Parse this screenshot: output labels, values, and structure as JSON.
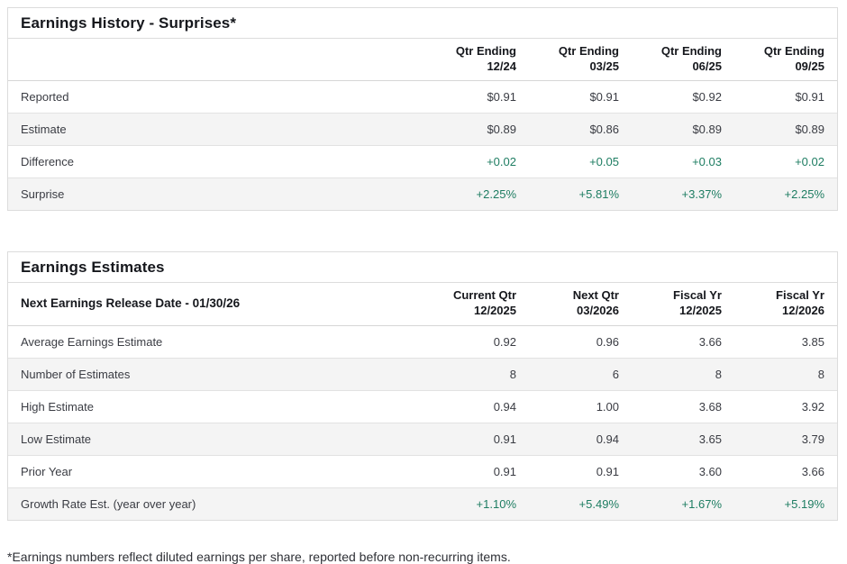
{
  "colors": {
    "positive_green": "#1e7d62",
    "heading_text": "#15171c",
    "body_text": "#3a3c43",
    "row_stripe": "#f4f4f4",
    "border": "#dcdcdc"
  },
  "history": {
    "title": "Earnings History - Surprises*",
    "columns": [
      {
        "line1": "Qtr Ending",
        "line2": "12/24"
      },
      {
        "line1": "Qtr Ending",
        "line2": "03/25"
      },
      {
        "line1": "Qtr Ending",
        "line2": "06/25"
      },
      {
        "line1": "Qtr Ending",
        "line2": "09/25"
      }
    ],
    "rows": [
      {
        "label": "Reported",
        "values": [
          "$0.91",
          "$0.91",
          "$0.92",
          "$0.91"
        ]
      },
      {
        "label": "Estimate",
        "values": [
          "$0.89",
          "$0.86",
          "$0.89",
          "$0.89"
        ]
      },
      {
        "label": "Difference",
        "values": [
          "+0.02",
          "+0.05",
          "+0.03",
          "+0.02"
        ]
      },
      {
        "label": "Surprise",
        "values": [
          "+2.25%",
          "+5.81%",
          "+3.37%",
          "+2.25%"
        ]
      }
    ]
  },
  "estimates": {
    "title": "Earnings Estimates",
    "header_label": "Next Earnings Release Date - 01/30/26",
    "columns": [
      {
        "line1": "Current Qtr",
        "line2": "12/2025"
      },
      {
        "line1": "Next Qtr",
        "line2": "03/2026"
      },
      {
        "line1": "Fiscal Yr",
        "line2": "12/2025"
      },
      {
        "line1": "Fiscal Yr",
        "line2": "12/2026"
      }
    ],
    "rows": [
      {
        "label": "Average Earnings Estimate",
        "values": [
          "0.92",
          "0.96",
          "3.66",
          "3.85"
        ]
      },
      {
        "label": "Number of Estimates",
        "values": [
          "8",
          "6",
          "8",
          "8"
        ]
      },
      {
        "label": "High Estimate",
        "values": [
          "0.94",
          "1.00",
          "3.68",
          "3.92"
        ]
      },
      {
        "label": "Low Estimate",
        "values": [
          "0.91",
          "0.94",
          "3.65",
          "3.79"
        ]
      },
      {
        "label": "Prior Year",
        "values": [
          "0.91",
          "0.91",
          "3.60",
          "3.66"
        ]
      },
      {
        "label": "Growth Rate Est. (year over year)",
        "values": [
          "+1.10%",
          "+5.49%",
          "+1.67%",
          "+5.19%"
        ]
      }
    ]
  },
  "footnote": "*Earnings numbers reflect diluted earnings per share, reported before non-recurring items."
}
